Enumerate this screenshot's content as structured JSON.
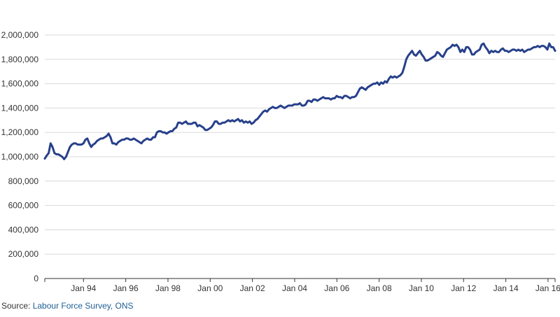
{
  "chart_data": {
    "type": "line",
    "xlabel": "",
    "ylabel": "",
    "x_start": "1992-03",
    "x_ticks": [
      "Jan 94",
      "Jan 96",
      "Jan 98",
      "Jan 00",
      "Jan 02",
      "Jan 04",
      "Jan 06",
      "Jan 08",
      "Jan 10",
      "Jan 12",
      "Jan 14",
      "Jan 16"
    ],
    "x_tick_months": [
      "1994-01",
      "1996-01",
      "1998-01",
      "2000-01",
      "2002-01",
      "2004-01",
      "2006-01",
      "2008-01",
      "2010-01",
      "2012-01",
      "2014-01",
      "2016-01"
    ],
    "x_range": [
      "1992-03",
      "2016-05"
    ],
    "y_ticks": [
      "0",
      "200,000",
      "400,000",
      "600,000",
      "800,000",
      "1,000,000",
      "1,200,000",
      "1,400,000",
      "1,600,000",
      "1,800,000",
      "2,000,000"
    ],
    "ylim": [
      0,
      2000000
    ],
    "grid": true,
    "color": "#27408b",
    "series": [
      {
        "values": [
          985000,
          1010000,
          1030000,
          1110000,
          1080000,
          1030000,
          1020000,
          1020000,
          1010000,
          1000000,
          980000,
          1000000,
          1040000,
          1080000,
          1100000,
          1110000,
          1110000,
          1100000,
          1100000,
          1100000,
          1110000,
          1140000,
          1150000,
          1110000,
          1080000,
          1100000,
          1110000,
          1130000,
          1140000,
          1150000,
          1150000,
          1160000,
          1170000,
          1190000,
          1160000,
          1110000,
          1110000,
          1100000,
          1120000,
          1130000,
          1140000,
          1140000,
          1150000,
          1150000,
          1140000,
          1140000,
          1150000,
          1140000,
          1130000,
          1120000,
          1110000,
          1130000,
          1140000,
          1150000,
          1140000,
          1140000,
          1160000,
          1160000,
          1200000,
          1210000,
          1210000,
          1200000,
          1200000,
          1190000,
          1200000,
          1210000,
          1210000,
          1230000,
          1240000,
          1280000,
          1280000,
          1270000,
          1280000,
          1290000,
          1270000,
          1270000,
          1270000,
          1280000,
          1280000,
          1250000,
          1260000,
          1250000,
          1240000,
          1220000,
          1220000,
          1230000,
          1240000,
          1260000,
          1290000,
          1290000,
          1270000,
          1270000,
          1280000,
          1280000,
          1290000,
          1300000,
          1290000,
          1300000,
          1290000,
          1300000,
          1310000,
          1290000,
          1300000,
          1280000,
          1290000,
          1280000,
          1290000,
          1270000,
          1280000,
          1300000,
          1310000,
          1330000,
          1350000,
          1370000,
          1380000,
          1370000,
          1390000,
          1400000,
          1410000,
          1400000,
          1400000,
          1410000,
          1420000,
          1410000,
          1400000,
          1410000,
          1420000,
          1420000,
          1420000,
          1430000,
          1430000,
          1430000,
          1440000,
          1420000,
          1420000,
          1430000,
          1460000,
          1460000,
          1450000,
          1470000,
          1470000,
          1460000,
          1470000,
          1480000,
          1490000,
          1480000,
          1480000,
          1480000,
          1470000,
          1480000,
          1480000,
          1500000,
          1490000,
          1490000,
          1480000,
          1500000,
          1500000,
          1490000,
          1480000,
          1490000,
          1490000,
          1500000,
          1530000,
          1560000,
          1570000,
          1560000,
          1550000,
          1570000,
          1580000,
          1590000,
          1600000,
          1600000,
          1610000,
          1590000,
          1610000,
          1600000,
          1620000,
          1610000,
          1640000,
          1660000,
          1650000,
          1660000,
          1650000,
          1660000,
          1670000,
          1690000,
          1740000,
          1800000,
          1830000,
          1850000,
          1870000,
          1840000,
          1830000,
          1850000,
          1870000,
          1840000,
          1820000,
          1790000,
          1790000,
          1800000,
          1810000,
          1820000,
          1830000,
          1860000,
          1850000,
          1830000,
          1820000,
          1850000,
          1880000,
          1890000,
          1900000,
          1920000,
          1910000,
          1920000,
          1900000,
          1860000,
          1880000,
          1860000,
          1900000,
          1900000,
          1880000,
          1840000,
          1840000,
          1860000,
          1870000,
          1880000,
          1920000,
          1930000,
          1900000,
          1880000,
          1850000,
          1870000,
          1860000,
          1870000,
          1860000,
          1860000,
          1880000,
          1890000,
          1870000,
          1870000,
          1860000,
          1870000,
          1880000,
          1880000,
          1870000,
          1880000,
          1870000,
          1880000,
          1860000,
          1870000,
          1880000,
          1880000,
          1890000,
          1900000,
          1900000,
          1910000,
          1900000,
          1910000,
          1910000,
          1900000,
          1880000,
          1930000,
          1900000,
          1900000,
          1870000
        ]
      }
    ]
  },
  "source": {
    "prefix": "Source: ",
    "link_text": "Labour Force Survey, ONS"
  }
}
